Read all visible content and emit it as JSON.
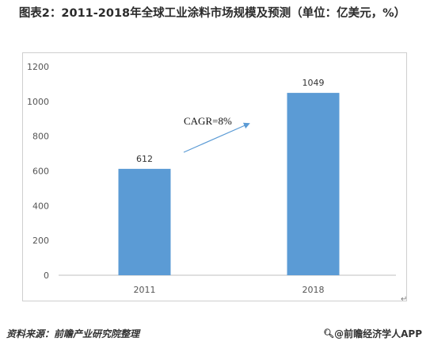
{
  "title": "图表2：2011-2018年全球工业涂料市场规模及预测（单位：亿美元，%）",
  "chart_data": {
    "type": "bar",
    "categories": [
      "2011",
      "2018"
    ],
    "values": [
      612,
      1049
    ],
    "data_labels": [
      "612",
      "1049"
    ],
    "ylim": [
      0,
      1200
    ],
    "yticks": [
      0,
      200,
      400,
      600,
      800,
      1000,
      1200
    ],
    "bar_color": "#5b9bd5",
    "grid": false,
    "annotation": {
      "text": "CAGR=8%",
      "arrow_color": "#5b9bd5"
    }
  },
  "footer": {
    "source": "资料来源：前瞻产业研究院整理",
    "brand_icon": "search-icon",
    "brand": "@前瞻经济学人APP"
  },
  "return_mark": "↵"
}
